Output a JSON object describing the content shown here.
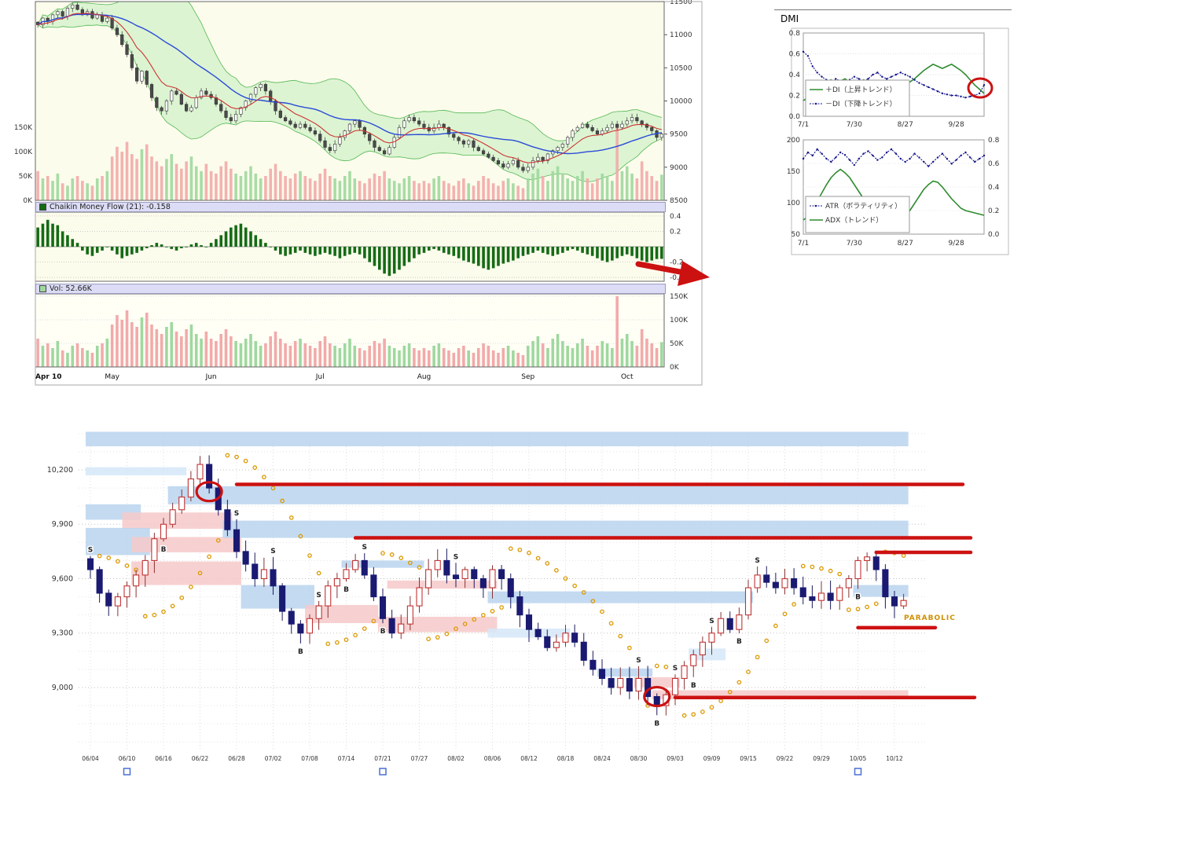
{
  "colors": {
    "red_annotation": "#cc1111",
    "header_bg": "#dcdcf6",
    "panel_bg": "#fcfcec",
    "cloud_fill": "#c6eec2",
    "cloud_edge": "#55b855",
    "ma_blue": "#2b4bd7",
    "ma_red": "#cc3333",
    "vol_up": "#9fd89f",
    "vol_down": "#f2aaaa",
    "chaikin_bar": "#156b15",
    "zone_blue": "#b9d4ee",
    "zone_pink": "#f6c9c9",
    "zone_lightblue": "#d6e7f8",
    "candle_up_edge": "#c23333",
    "candle_down": "#1a1a72",
    "sar": "#dd9900",
    "di_plus": "#2e8b2e",
    "di_minus": "#14148c"
  },
  "main_chart": {
    "chaikin_header": "Chaikin Money Flow (21): -0.158",
    "vol_header": "Vol: 52.66K"
  },
  "dmi_panel": {
    "title": "DMI"
  },
  "bottom_chart": {
    "parabolic_label": "PARABOLIC"
  },
  "annotations": {
    "red_arrow": true,
    "red_circle_on_dmi": true
  },
  "chart_data": [
    {
      "id": "price_daily",
      "type": "candlestick",
      "ylim": [
        8500,
        11500
      ],
      "y_ticks": [
        11500,
        11000,
        10500,
        10000,
        9500,
        9000,
        8500
      ],
      "left_volume_tick_labels": [
        "150K",
        "100K",
        "50K",
        "0K"
      ],
      "left_volume_tick_values": [
        150,
        100,
        50,
        0
      ],
      "x_tick_labels": [
        "Apr 10",
        "May",
        "Jun",
        "Jul",
        "Aug",
        "Sep",
        "Oct"
      ],
      "x_tick_indices": [
        0,
        15,
        35,
        57,
        78,
        99,
        119
      ],
      "indicators": {
        "bollinger_period": 20,
        "bollinger_mult": 2,
        "sma_period": 25,
        "ema_period": 9
      },
      "closes": [
        11150,
        11250,
        11200,
        11300,
        11350,
        11280,
        11400,
        11450,
        11380,
        11300,
        11350,
        11250,
        11300,
        11200,
        11250,
        11100,
        11000,
        10850,
        10700,
        10500,
        10300,
        10450,
        10250,
        10050,
        9900,
        9850,
        10000,
        10150,
        10100,
        9950,
        9850,
        9900,
        10050,
        10150,
        10100,
        10050,
        9950,
        9850,
        9750,
        9700,
        9800,
        9900,
        10000,
        10100,
        10200,
        10250,
        10150,
        10000,
        9850,
        9750,
        9700,
        9650,
        9600,
        9650,
        9600,
        9550,
        9500,
        9400,
        9300,
        9250,
        9350,
        9450,
        9550,
        9650,
        9700,
        9600,
        9500,
        9400,
        9300,
        9250,
        9200,
        9300,
        9450,
        9600,
        9700,
        9750,
        9700,
        9650,
        9600,
        9550,
        9600,
        9650,
        9600,
        9500,
        9450,
        9400,
        9350,
        9400,
        9300,
        9250,
        9200,
        9150,
        9100,
        9050,
        9000,
        9050,
        9100,
        9000,
        8950,
        9000,
        9100,
        9150,
        9100,
        9200,
        9250,
        9300,
        9350,
        9450,
        9550,
        9600,
        9650,
        9600,
        9550,
        9500,
        9550,
        9600,
        9650,
        9600,
        9650,
        9700,
        9750,
        9700,
        9650,
        9600,
        9550,
        9450,
        9500
      ],
      "volumes_k": [
        60,
        45,
        50,
        40,
        55,
        35,
        30,
        45,
        50,
        40,
        35,
        30,
        45,
        50,
        60,
        90,
        110,
        100,
        120,
        95,
        85,
        105,
        115,
        90,
        80,
        70,
        85,
        95,
        75,
        65,
        80,
        90,
        70,
        60,
        75,
        60,
        55,
        70,
        80,
        65,
        55,
        50,
        60,
        70,
        55,
        45,
        50,
        65,
        75,
        60,
        50,
        45,
        55,
        60,
        50,
        45,
        40,
        55,
        65,
        50,
        45,
        40,
        50,
        60,
        45,
        40,
        35,
        45,
        55,
        50,
        60,
        45,
        40,
        35,
        45,
        50,
        40,
        35,
        40,
        35,
        45,
        50,
        40,
        35,
        30,
        40,
        45,
        35,
        30,
        40,
        50,
        45,
        35,
        30,
        40,
        45,
        35,
        30,
        25,
        45,
        55,
        65,
        50,
        40,
        60,
        70,
        55,
        45,
        40,
        50,
        60,
        45,
        35,
        45,
        55,
        50,
        40,
        150,
        60,
        70,
        55,
        45,
        80,
        60,
        50,
        40,
        52.66
      ],
      "chaikin_mf_21": [
        0.25,
        0.3,
        0.35,
        0.3,
        0.28,
        0.2,
        0.15,
        0.1,
        0.05,
        -0.05,
        -0.1,
        -0.12,
        -0.08,
        -0.05,
        0.0,
        -0.05,
        -0.1,
        -0.15,
        -0.12,
        -0.1,
        -0.08,
        -0.05,
        -0.02,
        0.02,
        0.05,
        0.03,
        0.0,
        -0.03,
        -0.05,
        -0.02,
        0.0,
        0.03,
        0.05,
        0.02,
        0.0,
        0.05,
        0.1,
        0.15,
        0.2,
        0.25,
        0.28,
        0.3,
        0.25,
        0.2,
        0.15,
        0.1,
        0.05,
        0.0,
        -0.05,
        -0.1,
        -0.12,
        -0.1,
        -0.08,
        -0.05,
        -0.08,
        -0.1,
        -0.12,
        -0.1,
        -0.08,
        -0.1,
        -0.12,
        -0.15,
        -0.12,
        -0.1,
        -0.08,
        -0.1,
        -0.15,
        -0.2,
        -0.25,
        -0.3,
        -0.35,
        -0.38,
        -0.35,
        -0.3,
        -0.25,
        -0.2,
        -0.15,
        -0.1,
        -0.08,
        -0.05,
        -0.03,
        -0.05,
        -0.08,
        -0.1,
        -0.12,
        -0.15,
        -0.18,
        -0.2,
        -0.22,
        -0.25,
        -0.28,
        -0.3,
        -0.28,
        -0.25,
        -0.22,
        -0.2,
        -0.18,
        -0.15,
        -0.12,
        -0.1,
        -0.08,
        -0.05,
        -0.08,
        -0.1,
        -0.12,
        -0.1,
        -0.08,
        -0.05,
        -0.03,
        -0.05,
        -0.08,
        -0.1,
        -0.12,
        -0.15,
        -0.18,
        -0.2,
        -0.18,
        -0.15,
        -0.12,
        -0.1,
        -0.12,
        -0.15,
        -0.18,
        -0.2,
        -0.18,
        -0.16,
        -0.158
      ],
      "chaikin_axis_labels": [
        "0.4",
        "0.2",
        "-0.2",
        "-0.4"
      ],
      "chaikin_axis_values": [
        0.4,
        0.2,
        -0.2,
        -0.4
      ],
      "vol_axis_labels": [
        "150K",
        "100K",
        "50K",
        "0K"
      ],
      "vol_axis_values": [
        150,
        100,
        50,
        0
      ]
    },
    {
      "id": "dmi",
      "type": "line",
      "ylim": [
        0,
        0.8
      ],
      "y_tick_labels": [
        "0.8",
        "0.6",
        "0.4",
        "0.2",
        "0.0"
      ],
      "x_ticks": [
        "7/1",
        "7/30",
        "8/27",
        "9/28"
      ],
      "x_tick_indices": [
        0,
        11,
        22,
        33
      ],
      "series": [
        {
          "name": "＋DI（上昇トレンド）",
          "style": "solid-green",
          "values": [
            0.15,
            0.18,
            0.22,
            0.26,
            0.3,
            0.33,
            0.35,
            0.32,
            0.34,
            0.36,
            0.33,
            0.3,
            0.32,
            0.35,
            0.33,
            0.3,
            0.28,
            0.32,
            0.35,
            0.33,
            0.3,
            0.28,
            0.3,
            0.33,
            0.36,
            0.4,
            0.44,
            0.47,
            0.5,
            0.48,
            0.46,
            0.48,
            0.5,
            0.47,
            0.44,
            0.4,
            0.35,
            0.3,
            0.26,
            0.22
          ]
        },
        {
          "name": "－DI（下降トレンド）",
          "style": "dotted-navy",
          "values": [
            0.62,
            0.58,
            0.48,
            0.42,
            0.38,
            0.35,
            0.33,
            0.36,
            0.34,
            0.32,
            0.35,
            0.38,
            0.36,
            0.34,
            0.36,
            0.4,
            0.42,
            0.38,
            0.36,
            0.38,
            0.4,
            0.42,
            0.4,
            0.38,
            0.35,
            0.32,
            0.3,
            0.28,
            0.26,
            0.24,
            0.22,
            0.21,
            0.2,
            0.2,
            0.19,
            0.18,
            0.19,
            0.2,
            0.22,
            0.3
          ]
        }
      ]
    },
    {
      "id": "atr_adx",
      "type": "line",
      "left_ylim": [
        50,
        200
      ],
      "right_ylim": [
        0,
        0.8
      ],
      "left_tick_labels": [
        "200",
        "150",
        "100",
        "50"
      ],
      "left_tick_values": [
        200,
        150,
        100,
        50
      ],
      "right_tick_labels": [
        "0.8",
        "0.6",
        "0.4",
        "0.2",
        "0.0"
      ],
      "right_tick_values": [
        0.8,
        0.6,
        0.4,
        0.2,
        0.0
      ],
      "x_ticks": [
        "7/1",
        "7/30",
        "8/27",
        "9/28"
      ],
      "x_tick_indices": [
        0,
        11,
        22,
        33
      ],
      "series": [
        {
          "name": "ATR（ボラティリティ）",
          "axis": "left",
          "style": "dotted-navy",
          "values": [
            170,
            180,
            175,
            185,
            178,
            170,
            165,
            172,
            180,
            176,
            168,
            160,
            170,
            178,
            182,
            175,
            168,
            172,
            180,
            185,
            178,
            170,
            165,
            170,
            178,
            172,
            165,
            158,
            165,
            172,
            178,
            170,
            162,
            168,
            175,
            180,
            172,
            165,
            170,
            175
          ]
        },
        {
          "name": "ADX（トレンド）",
          "axis": "right",
          "style": "solid-green",
          "values": [
            0.12,
            0.15,
            0.2,
            0.28,
            0.35,
            0.42,
            0.48,
            0.52,
            0.55,
            0.52,
            0.48,
            0.42,
            0.36,
            0.3,
            0.25,
            0.2,
            0.16,
            0.13,
            0.11,
            0.1,
            0.1,
            0.12,
            0.15,
            0.2,
            0.26,
            0.32,
            0.38,
            0.42,
            0.45,
            0.44,
            0.4,
            0.35,
            0.3,
            0.26,
            0.22,
            0.2,
            0.19,
            0.18,
            0.17,
            0.16
          ]
        }
      ]
    },
    {
      "id": "signal_daily",
      "type": "candlestick",
      "ylim": [
        8650,
        10430
      ],
      "y_tick_labels": [
        "10,200",
        "9,900",
        "9,600",
        "9,300",
        "9,000"
      ],
      "y_tick_values": [
        10200,
        9900,
        9600,
        9300,
        9000
      ],
      "x_tick_labels": [
        "06/04",
        "06/10",
        "06/16",
        "06/22",
        "06/28",
        "07/02",
        "07/08",
        "07/14",
        "07/21",
        "07/27",
        "08/02",
        "08/06",
        "08/12",
        "08/18",
        "08/24",
        "08/30",
        "09/03",
        "09/09",
        "09/15",
        "09/22",
        "09/29",
        "10/05",
        "10/12"
      ],
      "candles_per_tick": 4,
      "closes": [
        9650,
        9520,
        9450,
        9500,
        9560,
        9620,
        9700,
        9820,
        9900,
        9980,
        10050,
        10150,
        10230,
        10100,
        9980,
        9870,
        9750,
        9680,
        9600,
        9650,
        9560,
        9420,
        9350,
        9300,
        9380,
        9450,
        9560,
        9600,
        9650,
        9700,
        9620,
        9500,
        9380,
        9300,
        9350,
        9450,
        9550,
        9650,
        9700,
        9620,
        9600,
        9650,
        9600,
        9550,
        9650,
        9600,
        9500,
        9400,
        9320,
        9280,
        9220,
        9250,
        9300,
        9250,
        9150,
        9100,
        9050,
        9000,
        9050,
        8980,
        9050,
        8950,
        8900,
        8960,
        9050,
        9120,
        9180,
        9250,
        9300,
        9380,
        9320,
        9400,
        9550,
        9620,
        9580,
        9550,
        9600,
        9550,
        9500,
        9480,
        9520,
        9480,
        9550,
        9600,
        9700,
        9720,
        9650,
        9500,
        9450,
        9480
      ],
      "parabolic_sar": true,
      "signals": [
        {
          "i": 0,
          "t": "S"
        },
        {
          "i": 8,
          "t": "B"
        },
        {
          "i": 16,
          "t": "S"
        },
        {
          "i": 20,
          "t": "S"
        },
        {
          "i": 23,
          "t": "B"
        },
        {
          "i": 25,
          "t": "S"
        },
        {
          "i": 28,
          "t": "B"
        },
        {
          "i": 30,
          "t": "S"
        },
        {
          "i": 32,
          "t": "B"
        },
        {
          "i": 40,
          "t": "S"
        },
        {
          "i": 60,
          "t": "S"
        },
        {
          "i": 62,
          "t": "B"
        },
        {
          "i": 64,
          "t": "S"
        },
        {
          "i": 66,
          "t": "B"
        },
        {
          "i": 68,
          "t": "S"
        },
        {
          "i": 71,
          "t": "B"
        },
        {
          "i": 73,
          "t": "S"
        },
        {
          "i": 84,
          "t": "B"
        }
      ],
      "zones": [
        {
          "i0": 0,
          "i1": 89,
          "p0": 10330,
          "p1": 10410,
          "c": "blue"
        },
        {
          "i0": 9,
          "i1": 89,
          "p0": 10010,
          "p1": 10110,
          "c": "blue"
        },
        {
          "i0": 0,
          "i1": 10,
          "p0": 10170,
          "p1": 10215,
          "c": "lightblue"
        },
        {
          "i0": 0,
          "i1": 5,
          "p0": 9925,
          "p1": 10010,
          "c": "blue"
        },
        {
          "i0": 4,
          "i1": 15,
          "p0": 9875,
          "p1": 9965,
          "c": "pink"
        },
        {
          "i0": 0,
          "i1": 6,
          "p0": 9730,
          "p1": 9880,
          "c": "blue"
        },
        {
          "i0": 5,
          "i1": 16,
          "p0": 9745,
          "p1": 9830,
          "c": "pink"
        },
        {
          "i0": 5,
          "i1": 16,
          "p0": 9565,
          "p1": 9695,
          "c": "pink"
        },
        {
          "i0": 15,
          "i1": 89,
          "p0": 9825,
          "p1": 9920,
          "c": "blue"
        },
        {
          "i0": 17,
          "i1": 24,
          "p0": 9435,
          "p1": 9565,
          "c": "blue"
        },
        {
          "i0": 24,
          "i1": 31,
          "p0": 9355,
          "p1": 9455,
          "c": "pink"
        },
        {
          "i0": 28,
          "i1": 36,
          "p0": 9660,
          "p1": 9700,
          "c": "blue"
        },
        {
          "i0": 33,
          "i1": 44,
          "p0": 9545,
          "p1": 9590,
          "c": "pink"
        },
        {
          "i0": 32,
          "i1": 44,
          "p0": 9305,
          "p1": 9390,
          "c": "pink"
        },
        {
          "i0": 44,
          "i1": 72,
          "p0": 9465,
          "p1": 9530,
          "c": "blue"
        },
        {
          "i0": 44,
          "i1": 52,
          "p0": 9275,
          "p1": 9325,
          "c": "lightblue"
        },
        {
          "i0": 56,
          "i1": 61,
          "p0": 9060,
          "p1": 9105,
          "c": "blue"
        },
        {
          "i0": 60,
          "i1": 64,
          "p0": 9000,
          "p1": 9057,
          "c": "pink"
        },
        {
          "i0": 66,
          "i1": 69,
          "p0": 9150,
          "p1": 9215,
          "c": "lightblue"
        },
        {
          "i0": 62,
          "i1": 89,
          "p0": 8935,
          "p1": 8985,
          "c": "pink"
        },
        {
          "i0": 84,
          "i1": 89,
          "p0": 9500,
          "p1": 9565,
          "c": "blue"
        }
      ],
      "red_lines": [
        {
          "p": 10120,
          "i0": 16,
          "over": 45
        },
        {
          "p": 9825,
          "i0": 29,
          "over": 55
        },
        {
          "p": 9745,
          "i0": 86,
          "over": 55
        },
        {
          "p": 9330,
          "i0": 84,
          "over": 10
        },
        {
          "p": 8945,
          "i0": 64,
          "over": 60
        }
      ],
      "red_circles": [
        {
          "i": 13,
          "price": 10080
        },
        {
          "i": 62,
          "price": 8950
        }
      ],
      "axis_markers": [
        {
          "tick": 1
        },
        {
          "tick": 8
        },
        {
          "tick": 21
        }
      ]
    }
  ]
}
